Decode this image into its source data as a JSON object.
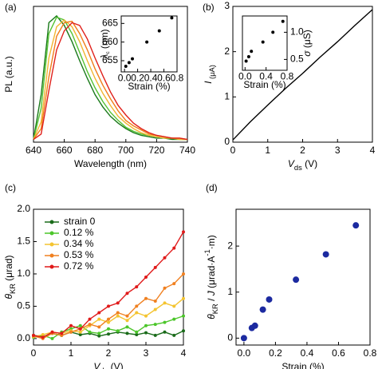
{
  "chart_data": [
    {
      "type": "line",
      "panel_label": "(a)",
      "xlabel": [
        "Wavelength (nm)"
      ],
      "ylabel": [
        "PL (a.u.)"
      ],
      "x": [
        640,
        645,
        650,
        655,
        660,
        665,
        670,
        675,
        680,
        685,
        690,
        695,
        700,
        705,
        710,
        715,
        720,
        725,
        730,
        735,
        740
      ],
      "series": [
        {
          "color": "#1a7a1a",
          "values": [
            0.02,
            0.35,
            0.88,
            0.93,
            0.86,
            0.74,
            0.6,
            0.47,
            0.35,
            0.26,
            0.19,
            0.14,
            0.1,
            0.07,
            0.05,
            0.04,
            0.03,
            0.03,
            0.02,
            0.02,
            0.02
          ]
        },
        {
          "color": "#55c232",
          "values": [
            0.02,
            0.25,
            0.8,
            0.92,
            0.9,
            0.8,
            0.66,
            0.52,
            0.4,
            0.3,
            0.22,
            0.16,
            0.11,
            0.08,
            0.06,
            0.05,
            0.04,
            0.03,
            0.03,
            0.02,
            0.02
          ]
        },
        {
          "color": "#f2b531",
          "values": [
            0.02,
            0.15,
            0.62,
            0.85,
            0.9,
            0.85,
            0.74,
            0.6,
            0.47,
            0.36,
            0.27,
            0.19,
            0.14,
            0.1,
            0.07,
            0.05,
            0.04,
            0.03,
            0.03,
            0.02,
            0.02
          ]
        },
        {
          "color": "#f07d1a",
          "values": [
            0.02,
            0.1,
            0.48,
            0.78,
            0.88,
            0.89,
            0.8,
            0.68,
            0.54,
            0.42,
            0.32,
            0.23,
            0.16,
            0.12,
            0.09,
            0.06,
            0.05,
            0.04,
            0.03,
            0.03,
            0.02
          ]
        },
        {
          "color": "#e0201b",
          "values": [
            0.02,
            0.06,
            0.38,
            0.68,
            0.82,
            0.88,
            0.86,
            0.76,
            0.62,
            0.49,
            0.37,
            0.27,
            0.2,
            0.14,
            0.1,
            0.07,
            0.05,
            0.04,
            0.03,
            0.03,
            0.02
          ]
        }
      ],
      "xlim": [
        640,
        740
      ],
      "xticks": [
        640,
        660,
        680,
        700,
        720,
        740
      ],
      "ylim": [
        0,
        1
      ]
    },
    {
      "type": "scatter",
      "xlabel": [
        "Strain (%)"
      ],
      "ylabel": [
        "λ",
        "c",
        " (nm)"
      ],
      "x": [
        0.02,
        0.07,
        0.12,
        0.34,
        0.53,
        0.72
      ],
      "values": [
        653.5,
        654.5,
        655.5,
        660,
        663,
        666.5
      ],
      "color": "#000000",
      "xlim": [
        -0.05,
        0.8
      ],
      "xticks": [
        {
          "value": 0,
          "label": "0.0"
        },
        0.2,
        0.4,
        {
          "value": 0.6,
          "label": "0.6"
        },
        0.8
      ],
      "ylim": [
        652,
        667
      ],
      "yticks": [
        655,
        660,
        665
      ]
    },
    {
      "type": "line",
      "panel_label": "(b)",
      "xlabel": [
        "V",
        "ds",
        " (V)"
      ],
      "ylabel": [
        "I",
        " (μA)"
      ],
      "x": [
        0,
        0.5,
        1,
        1.5,
        2,
        2.5,
        3,
        3.5,
        4
      ],
      "series": [
        {
          "color": "#000000",
          "values": [
            0.05,
            0.45,
            0.82,
            1.18,
            1.52,
            1.88,
            2.22,
            2.58,
            2.93
          ]
        }
      ],
      "xlim": [
        0,
        4
      ],
      "xticks": [
        0,
        1,
        2,
        3,
        4
      ],
      "ylim": [
        0,
        3
      ],
      "yticks": [
        0,
        1,
        2,
        3
      ]
    },
    {
      "type": "scatter",
      "xlabel": [
        "Strain (%)"
      ],
      "ylabel": [
        "σ",
        " (μS)"
      ],
      "x": [
        0.02,
        0.07,
        0.12,
        0.34,
        0.53,
        0.72
      ],
      "values": [
        0.47,
        0.55,
        0.65,
        0.82,
        1.0,
        1.2
      ],
      "color": "#000000",
      "xlim": [
        -0.05,
        0.8
      ],
      "xticks": [
        {
          "value": 0,
          "label": "0.0"
        },
        0.4,
        0.8
      ],
      "ylim": [
        0.3,
        1.3
      ],
      "yticks": [
        0.5,
        {
          "value": 1,
          "label": "1.0"
        }
      ]
    },
    {
      "type": "line",
      "panel_label": "(c)",
      "xlabel": [
        "V",
        "ds",
        " (V)"
      ],
      "ylabel": [
        "θ",
        "KR",
        " (μrad)"
      ],
      "legend": "upper left",
      "x": [
        0,
        0.25,
        0.5,
        0.75,
        1,
        1.25,
        1.5,
        1.75,
        2,
        2.25,
        2.5,
        2.75,
        3,
        3.25,
        3.5,
        3.75,
        4
      ],
      "series": [
        {
          "name": "strain 0",
          "color": "#1a6b1a",
          "values": [
            0.05,
            0.03,
            0.08,
            0.05,
            0.1,
            0.06,
            0.08,
            0.04,
            0.07,
            0.1,
            0.08,
            0.06,
            0.09,
            0.05,
            0.1,
            0.05,
            0.12
          ]
        },
        {
          "name": "0.12 %",
          "color": "#4cc62a",
          "values": [
            0.02,
            0.05,
            0.0,
            0.1,
            0.15,
            0.2,
            0.1,
            0.08,
            0.15,
            0.12,
            0.18,
            0.1,
            0.2,
            0.22,
            0.25,
            0.3,
            0.35
          ]
        },
        {
          "name": "0.34 %",
          "color": "#f4c430",
          "values": [
            0.03,
            0.06,
            0.1,
            0.08,
            0.12,
            0.1,
            0.2,
            0.3,
            0.25,
            0.35,
            0.28,
            0.4,
            0.35,
            0.45,
            0.55,
            0.5,
            0.62
          ]
        },
        {
          "name": "0.53 %",
          "color": "#f08020",
          "values": [
            0.04,
            0.0,
            0.08,
            0.05,
            0.1,
            0.15,
            0.22,
            0.18,
            0.3,
            0.4,
            0.35,
            0.5,
            0.62,
            0.58,
            0.78,
            0.85,
            1.0
          ]
        },
        {
          "name": "0.72 %",
          "color": "#e01a1a",
          "values": [
            0.05,
            0.02,
            0.1,
            0.08,
            0.2,
            0.15,
            0.3,
            0.4,
            0.5,
            0.55,
            0.7,
            0.8,
            0.95,
            1.1,
            1.25,
            1.4,
            1.65
          ]
        }
      ],
      "xlim": [
        0,
        4
      ],
      "xticks": [
        0,
        1,
        2,
        3,
        4
      ],
      "ylim": [
        -0.1,
        2
      ],
      "yticks": [
        {
          "value": 0,
          "label": "0.0"
        },
        0.5,
        {
          "value": 1,
          "label": "1.0"
        },
        1.5,
        {
          "value": 2,
          "label": "2.0"
        }
      ]
    },
    {
      "type": "scatter",
      "panel_label": "(d)",
      "xlabel": [
        "Strain (%)"
      ],
      "ylabel": [
        "θ",
        "KR",
        " / ",
        "J",
        " (μrad·A",
        "-1",
        "·m)"
      ],
      "x": [
        0,
        0.05,
        0.07,
        0.12,
        0.16,
        0.33,
        0.52,
        0.71
      ],
      "values": [
        0,
        0.22,
        0.27,
        0.62,
        0.84,
        1.27,
        1.82,
        2.45
      ],
      "color": "#1c2aa0",
      "xlim": [
        -0.05,
        0.8
      ],
      "xticks": [
        {
          "value": 0,
          "label": "0.0"
        },
        0.2,
        0.4,
        {
          "value": 0.6,
          "label": "0.6"
        },
        0.8
      ],
      "ylim": [
        -0.15,
        2.8
      ],
      "yticks": [
        0,
        1,
        2
      ]
    }
  ]
}
